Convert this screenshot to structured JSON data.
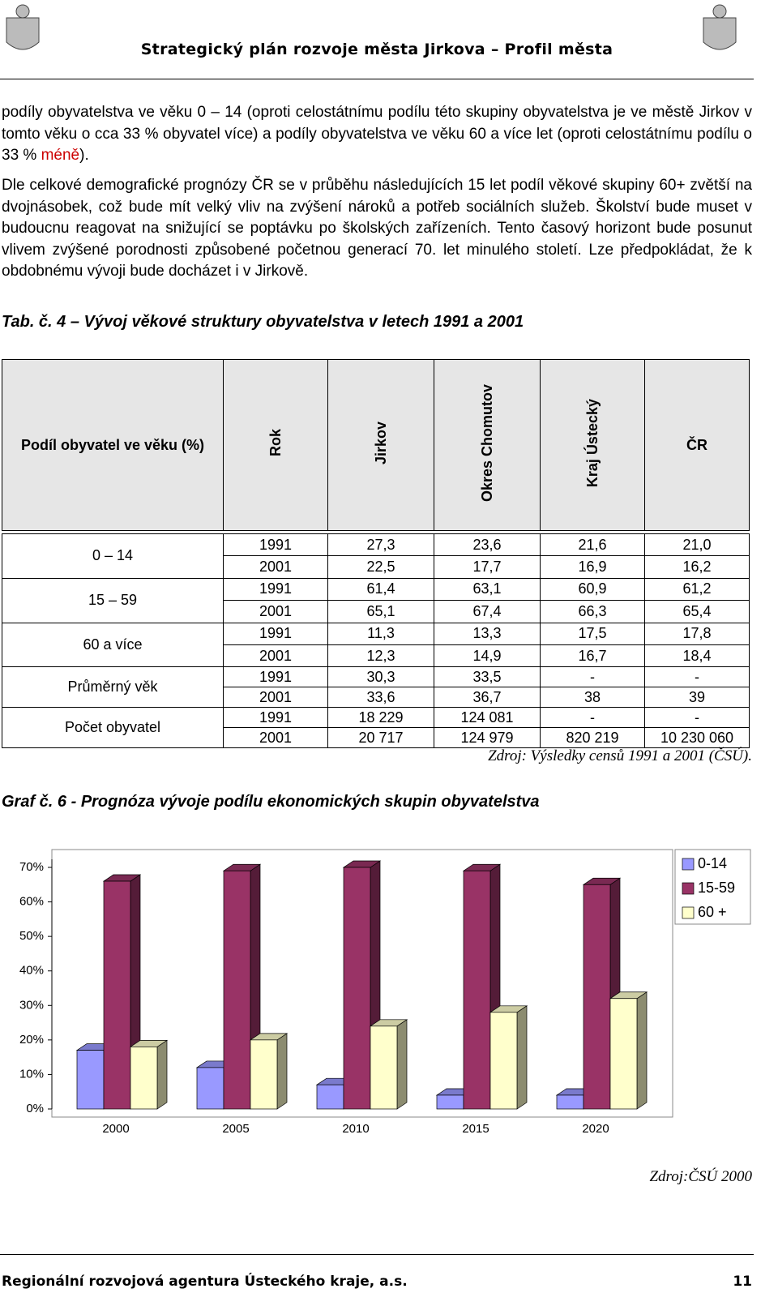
{
  "header": {
    "title": "Strategický plán rozvoje města Jirkova – Profil města"
  },
  "paragraphs": [
    {
      "before": "podíly obyvatelstva ve věku 0 – 14 (oproti celostátnímu podílu této skupiny obyvatelstva je ve městě Jirkov v tomto věku o cca 33 % obyvatel více) a podíly obyvatelstva ve věku 60 a více let (oproti celostátnímu podílu o 33 % ",
      "highlight": "méně",
      "after": ")."
    },
    {
      "text": "Dle celkové demografické prognózy ČR se v průběhu následujících 15 let podíl věkové skupiny 60+ zvětší na dvojnásobek, což bude mít velký vliv na zvýšení nároků a potřeb sociálních služeb. Školství bude muset v budoucnu reagovat na snižující se poptávku po školských zařízeních. Tento časový horizont bude posunut vlivem zvýšené porodnosti způsobené početnou generací 70. let minulého století. Lze předpokládat, že k obdobnému vývoji bude docházet i v Jirkově."
    }
  ],
  "table": {
    "caption": "Tab. č. 4 – Vývoj věkové struktury obyvatelstva v letech 1991 a 2001",
    "headers": [
      "Podíl obyvatel ve věku (%)",
      "Rok",
      "Jirkov",
      "Okres Chomutov",
      "Kraj Ústecký",
      "ČR"
    ],
    "groups": [
      {
        "label": "0 – 14",
        "rows": [
          [
            "1991",
            "27,3",
            "23,6",
            "21,6",
            "21,0"
          ],
          [
            "2001",
            "22,5",
            "17,7",
            "16,9",
            "16,2"
          ]
        ]
      },
      {
        "label": "15 – 59",
        "rows": [
          [
            "1991",
            "61,4",
            "63,1",
            "60,9",
            "61,2"
          ],
          [
            "2001",
            "65,1",
            "67,4",
            "66,3",
            "65,4"
          ]
        ]
      },
      {
        "label": "60 a více",
        "rows": [
          [
            "1991",
            "11,3",
            "13,3",
            "17,5",
            "17,8"
          ],
          [
            "2001",
            "12,3",
            "14,9",
            "16,7",
            "18,4"
          ]
        ]
      },
      {
        "label": "Průměrný věk",
        "rows": [
          [
            "1991",
            "30,3",
            "33,5",
            "-",
            "-"
          ],
          [
            "2001",
            "33,6",
            "36,7",
            "38",
            "39"
          ]
        ]
      },
      {
        "label": "Počet obyvatel",
        "rows": [
          [
            "1991",
            "18 229",
            "124 081",
            "-",
            "-"
          ],
          [
            "2001",
            "20 717",
            "124 979",
            "820 219",
            "10 230 060"
          ]
        ]
      }
    ],
    "source": "Zdroj: Výsledky censů 1991 a 2001 (ČSÚ)."
  },
  "chart_caption": "Graf č. 6 - Prognóza vývoje podílu ekonomických skupin obyvatelstva",
  "chart_data": {
    "type": "bar3d",
    "categories": [
      "2000",
      "2005",
      "2010",
      "2015",
      "2020"
    ],
    "series": [
      {
        "name": "0-14",
        "color": "#9999ff",
        "values": [
          17,
          12,
          7,
          4,
          4
        ]
      },
      {
        "name": "15-59",
        "color": "#993366",
        "values": [
          66,
          69,
          70,
          69,
          65
        ]
      },
      {
        "name": "60 +",
        "color": "#ffffcc",
        "values": [
          18,
          20,
          24,
          28,
          32
        ]
      }
    ],
    "ylim": [
      0,
      70
    ],
    "yticks": [
      {
        "value": 0,
        "label": "0%"
      },
      {
        "value": 10,
        "label": "10%"
      },
      {
        "value": 20,
        "label": "20%"
      },
      {
        "value": 30,
        "label": "30%"
      },
      {
        "value": 40,
        "label": "40%"
      },
      {
        "value": 50,
        "label": "50%"
      },
      {
        "value": 60,
        "label": "60%"
      },
      {
        "value": 70,
        "label": "70%"
      }
    ],
    "grid": false,
    "legend": "top-right"
  },
  "chart_source": "Zdroj:ČSÚ 2000",
  "footer": {
    "org": "Regionální rozvojová agentura Ústeckého kraje, a.s.",
    "page": "11"
  }
}
